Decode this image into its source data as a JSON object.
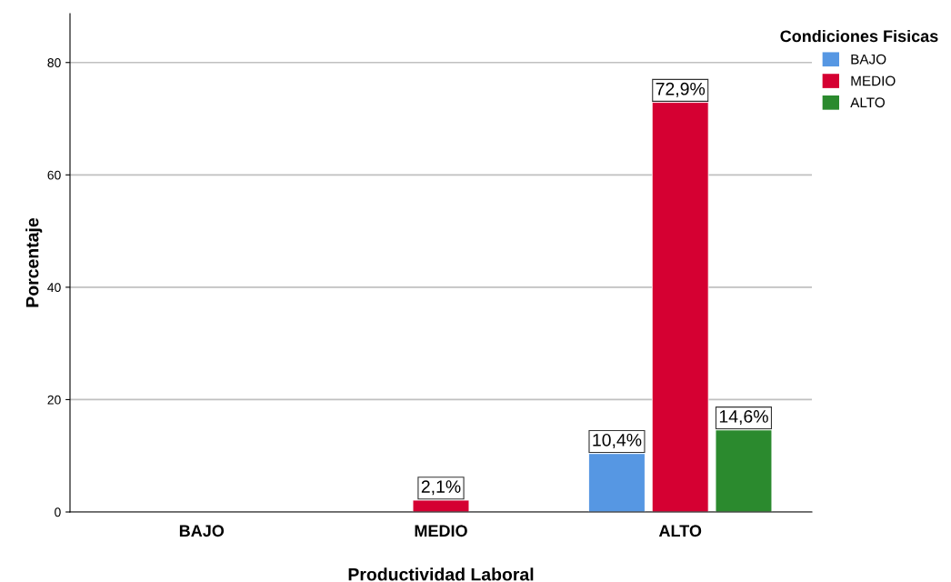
{
  "chart_data": {
    "type": "bar",
    "xlabel": "Productividad Laboral",
    "ylabel": "Porcentaje",
    "legend_title": "Condiciones Fisicas",
    "categories": [
      "BAJO",
      "MEDIO",
      "ALTO"
    ],
    "series": [
      {
        "name": "BAJO",
        "color": "#5697e3",
        "values": [
          null,
          null,
          10.4
        ],
        "value_labels": [
          null,
          null,
          "10,4%"
        ]
      },
      {
        "name": "MEDIO",
        "color": "#d50032",
        "values": [
          null,
          2.1,
          72.9
        ],
        "value_labels": [
          null,
          "2,1%",
          "72,9%"
        ]
      },
      {
        "name": "ALTO",
        "color": "#2b8a2e",
        "values": [
          null,
          null,
          14.6
        ],
        "value_labels": [
          null,
          null,
          "14,6%"
        ]
      }
    ],
    "ylim": [
      0,
      88.7
    ],
    "yticks": [
      0,
      20,
      40,
      60,
      80
    ],
    "grid": "y",
    "legend": "top right"
  }
}
